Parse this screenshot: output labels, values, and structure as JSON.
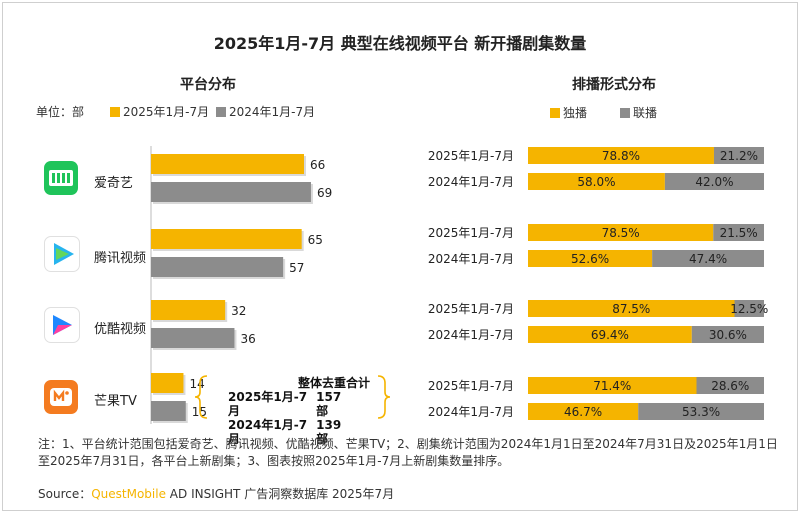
{
  "title": "2025年1月-7月 典型在线视频平台 新开播剧集数量",
  "left_section_title": "平台分布",
  "right_section_title": "排播形式分布",
  "unit_label": "单位：部",
  "colors": {
    "y2025": "#f5b400",
    "y2024": "#8c8c8c",
    "exclusive": "#f5b400",
    "joint": "#8c8c8c"
  },
  "platforms": [
    {
      "name": "爱奇艺",
      "icon": "iqiyi-logo-icon"
    },
    {
      "name": "腾讯视频",
      "icon": "tencent-video-logo-icon"
    },
    {
      "name": "优酷视频",
      "icon": "youku-logo-icon"
    },
    {
      "name": "芒果TV",
      "icon": "mango-tv-logo-icon"
    }
  ],
  "summary": {
    "heading": "整体去重合计",
    "rows": [
      {
        "period": "2025年1月-7月",
        "value": "157部"
      },
      {
        "period": "2024年1月-7月",
        "value": "139部"
      }
    ]
  },
  "chart_data": [
    {
      "type": "bar",
      "orientation": "horizontal",
      "title": "平台分布",
      "categories": [
        "爱奇艺",
        "腾讯视频",
        "优酷视频",
        "芒果TV"
      ],
      "series": [
        {
          "name": "2025年1月-7月",
          "values": [
            66,
            65,
            32,
            14
          ]
        },
        {
          "name": "2024年1月-7月",
          "values": [
            69,
            57,
            36,
            15
          ]
        }
      ],
      "unit": "部",
      "legend": "top-left"
    },
    {
      "type": "bar",
      "orientation": "horizontal",
      "stacked": true,
      "percent": true,
      "title": "排播形式分布",
      "groups": [
        "爱奇艺",
        "腾讯视频",
        "优酷视频",
        "芒果TV"
      ],
      "row_labels": [
        "2025年1月-7月",
        "2024年1月-7月"
      ],
      "series": [
        {
          "name": "独播",
          "values": [
            [
              78.8,
              58.0
            ],
            [
              78.5,
              52.6
            ],
            [
              87.5,
              69.4
            ],
            [
              71.4,
              46.7
            ]
          ]
        },
        {
          "name": "联播",
          "values": [
            [
              21.2,
              42.0
            ],
            [
              21.5,
              47.4
            ],
            [
              12.5,
              30.6
            ],
            [
              28.6,
              53.3
            ]
          ]
        }
      ],
      "legend": "top-center"
    }
  ],
  "note": "注：1、平台统计范围包括爱奇艺、腾讯视频、优酷视频、芒果TV；2、剧集统计范围为2024年1月1日至2024年7月31日及2025年1月1日至2025年7月31日，各平台上新剧集；3、图表按照2025年1月-7月上新剧集数量排序。",
  "source": {
    "label": "Source：",
    "brand": "QuestMobile",
    "text": " AD INSIGHT 广告洞察数据库 2025年7月"
  }
}
